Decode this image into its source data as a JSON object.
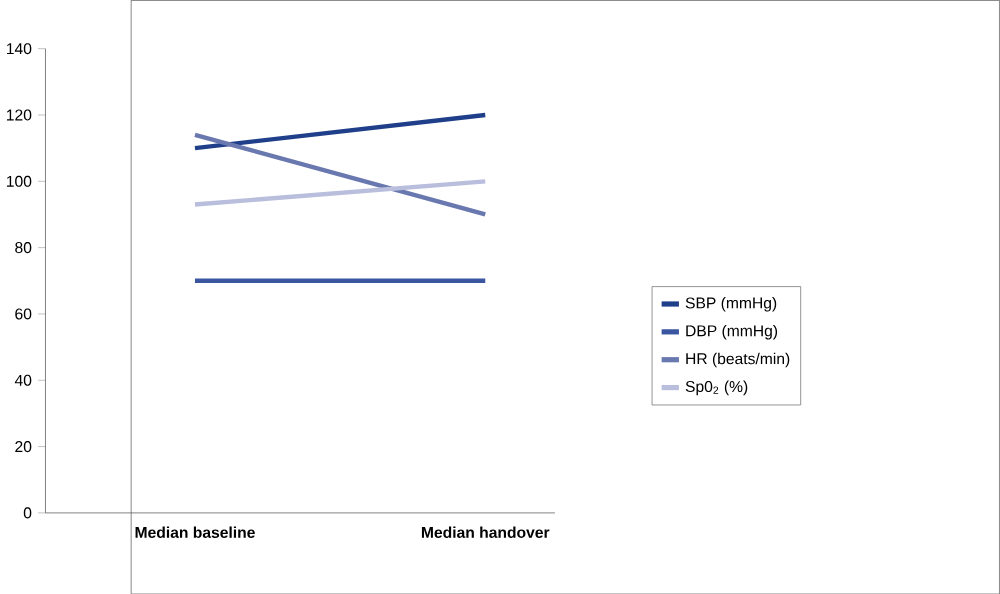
{
  "chart_data": {
    "type": "line",
    "categories": [
      "Median baseline",
      "Median handover"
    ],
    "series": [
      {
        "name": "SBP (mmHg)",
        "color": "#1f3f8a",
        "values": [
          110,
          120
        ]
      },
      {
        "name": "DBP (mmHg)",
        "color": "#3a56a0",
        "values": [
          70,
          70
        ]
      },
      {
        "name": "HR (beats/min)",
        "color": "#6a78b0",
        "values": [
          114,
          90
        ]
      },
      {
        "name": "Sp0$_{2}$ (%)",
        "color": "#b8bedc",
        "values": [
          93,
          100
        ]
      }
    ],
    "ylim": [
      0,
      140
    ],
    "yticks": [
      0,
      20,
      40,
      60,
      80,
      100,
      120,
      140
    ],
    "grid": false,
    "legend": "right",
    "marker": "none",
    "line_style": "solid"
  }
}
